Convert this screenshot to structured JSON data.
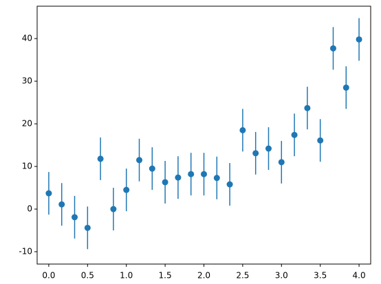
{
  "chart_data": {
    "type": "errorbar",
    "color": "#1f77b4",
    "x": [
      0,
      0.1667,
      0.3333,
      0.5,
      0.6667,
      0.8333,
      1.0,
      1.1667,
      1.3333,
      1.5,
      1.6667,
      1.8333,
      2.0,
      2.1667,
      2.3333,
      2.5,
      2.6667,
      2.8333,
      3.0,
      3.1667,
      3.3333,
      3.5,
      3.6667,
      3.8333,
      4.0
    ],
    "values": [
      3.7,
      1.1,
      -1.9,
      -4.4,
      11.8,
      0.0,
      4.5,
      11.5,
      9.5,
      6.3,
      7.4,
      8.2,
      8.2,
      7.3,
      5.8,
      18.5,
      13.1,
      14.2,
      11.0,
      17.4,
      23.7,
      16.1,
      37.7,
      28.5,
      39.8
    ],
    "errors": [
      5,
      5,
      5,
      5,
      5,
      5,
      5,
      5,
      5,
      5,
      5,
      5,
      5,
      5,
      5,
      5,
      5,
      5,
      5,
      5,
      5,
      5,
      5,
      5,
      5
    ],
    "xlim": [
      -0.15,
      4.15
    ],
    "ylim": [
      -12.9,
      47.6
    ],
    "xticks": [
      {
        "value": 0,
        "label": "0.0"
      },
      {
        "value": 0.5,
        "label": "0.5"
      },
      {
        "value": 1,
        "label": "1.0"
      },
      {
        "value": 1.5,
        "label": "1.5"
      },
      {
        "value": 2,
        "label": "2.0"
      },
      {
        "value": 2.5,
        "label": "2.5"
      },
      {
        "value": 3,
        "label": "3.0"
      },
      {
        "value": 3.5,
        "label": "3.5"
      },
      {
        "value": 4,
        "label": "4.0"
      }
    ],
    "yticks": [
      -10,
      0,
      10,
      20,
      30,
      40
    ]
  }
}
